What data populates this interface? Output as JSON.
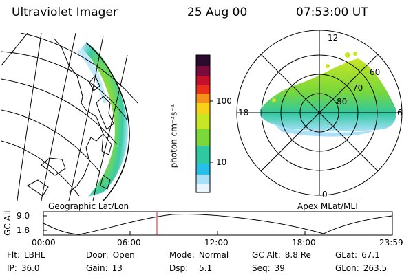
{
  "header": {
    "title": "Ultraviolet Imager",
    "date": "25 Aug 00",
    "time": "07:53:00 UT"
  },
  "geo_panel": {
    "label": "Geographic Lat/Lon"
  },
  "colorbar": {
    "ticks": [
      "100",
      "10"
    ],
    "unit_label": "photon cm⁻²s⁻¹",
    "colors": [
      "#2a0b2e",
      "#7a0a3a",
      "#c4102a",
      "#e8301a",
      "#f5901a",
      "#f7d21a",
      "#c8e626",
      "#7ad83a",
      "#30c8a0",
      "#28c0e8",
      "#a8e0f8",
      "#e8f6fc"
    ]
  },
  "polar_panel": {
    "label": "Apex MLat/MLT",
    "mlt_labels": [
      "12",
      "18",
      "6",
      "0"
    ],
    "lat_labels": [
      "60",
      "70",
      "80"
    ],
    "oval_colors": [
      "#30c8a0",
      "#7ad83a",
      "#c8e626",
      "#28c0e8",
      "#a8e0f8"
    ]
  },
  "altitude_plot": {
    "axis_label": "GC Alt",
    "y_ticks": [
      "9.0",
      "1.8"
    ],
    "x_ticks": [
      "00:00",
      "06:00",
      "12:00",
      "18:00",
      "23:59"
    ],
    "cursor_color": "#dd2020"
  },
  "info": {
    "row1": [
      {
        "key": "Flt:",
        "value": "LBHL"
      },
      {
        "key": "Door:",
        "value": "Open"
      },
      {
        "key": "Mode:",
        "value": "Normal"
      },
      {
        "key": "GC Alt:",
        "value": "8.8 Re"
      },
      {
        "key": "GLat:",
        "value": "67.1"
      }
    ],
    "row2": [
      {
        "key": "IP:",
        "value": "36.0"
      },
      {
        "key": "Gain:",
        "value": "13"
      },
      {
        "key": "Dsp:",
        "value": "5.1"
      },
      {
        "key": "Seq:",
        "value": "39"
      },
      {
        "key": "GLon:",
        "value": "263.5"
      }
    ]
  }
}
